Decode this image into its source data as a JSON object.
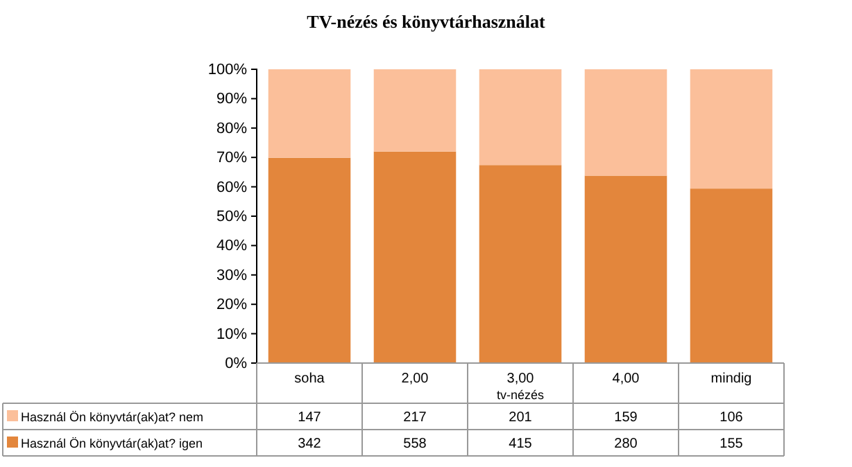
{
  "chart_data": {
    "type": "bar",
    "title": "TV-nézés és könyvtárhasználat",
    "xlabel": "tv-nézés",
    "categories": [
      "soha",
      "2,00",
      "3,00",
      "4,00",
      "mindig"
    ],
    "stacked": true,
    "series": [
      {
        "name": "Használ Ön könyvtár(ak)at? igen",
        "color": "#e3863c",
        "values": [
          69.9,
          72.0,
          67.4,
          63.8,
          59.4
        ]
      },
      {
        "name": "Használ Ön könyvtár(ak)at? nem",
        "color": "#fbbf9a",
        "values": [
          30.1,
          28.0,
          32.6,
          36.2,
          40.6
        ]
      }
    ],
    "annotations": [
      "147",
      "217",
      "201",
      "159",
      "106",
      "342",
      "558",
      "415",
      "280",
      "155"
    ],
    "ylim": [
      0,
      100
    ],
    "yticks": [
      {
        "value": 0,
        "label": "0%"
      },
      {
        "value": 10,
        "label": "10%"
      },
      {
        "value": 20,
        "label": "20%"
      },
      {
        "value": 30,
        "label": "30%"
      },
      {
        "value": 40,
        "label": "40%"
      },
      {
        "value": 50,
        "label": "50%"
      },
      {
        "value": 60,
        "label": "60%"
      },
      {
        "value": 70,
        "label": "70%"
      },
      {
        "value": 80,
        "label": "80%"
      },
      {
        "value": 90,
        "label": "90%"
      },
      {
        "value": 100,
        "label": "100%"
      }
    ],
    "grid": false,
    "legend": "bottom"
  }
}
